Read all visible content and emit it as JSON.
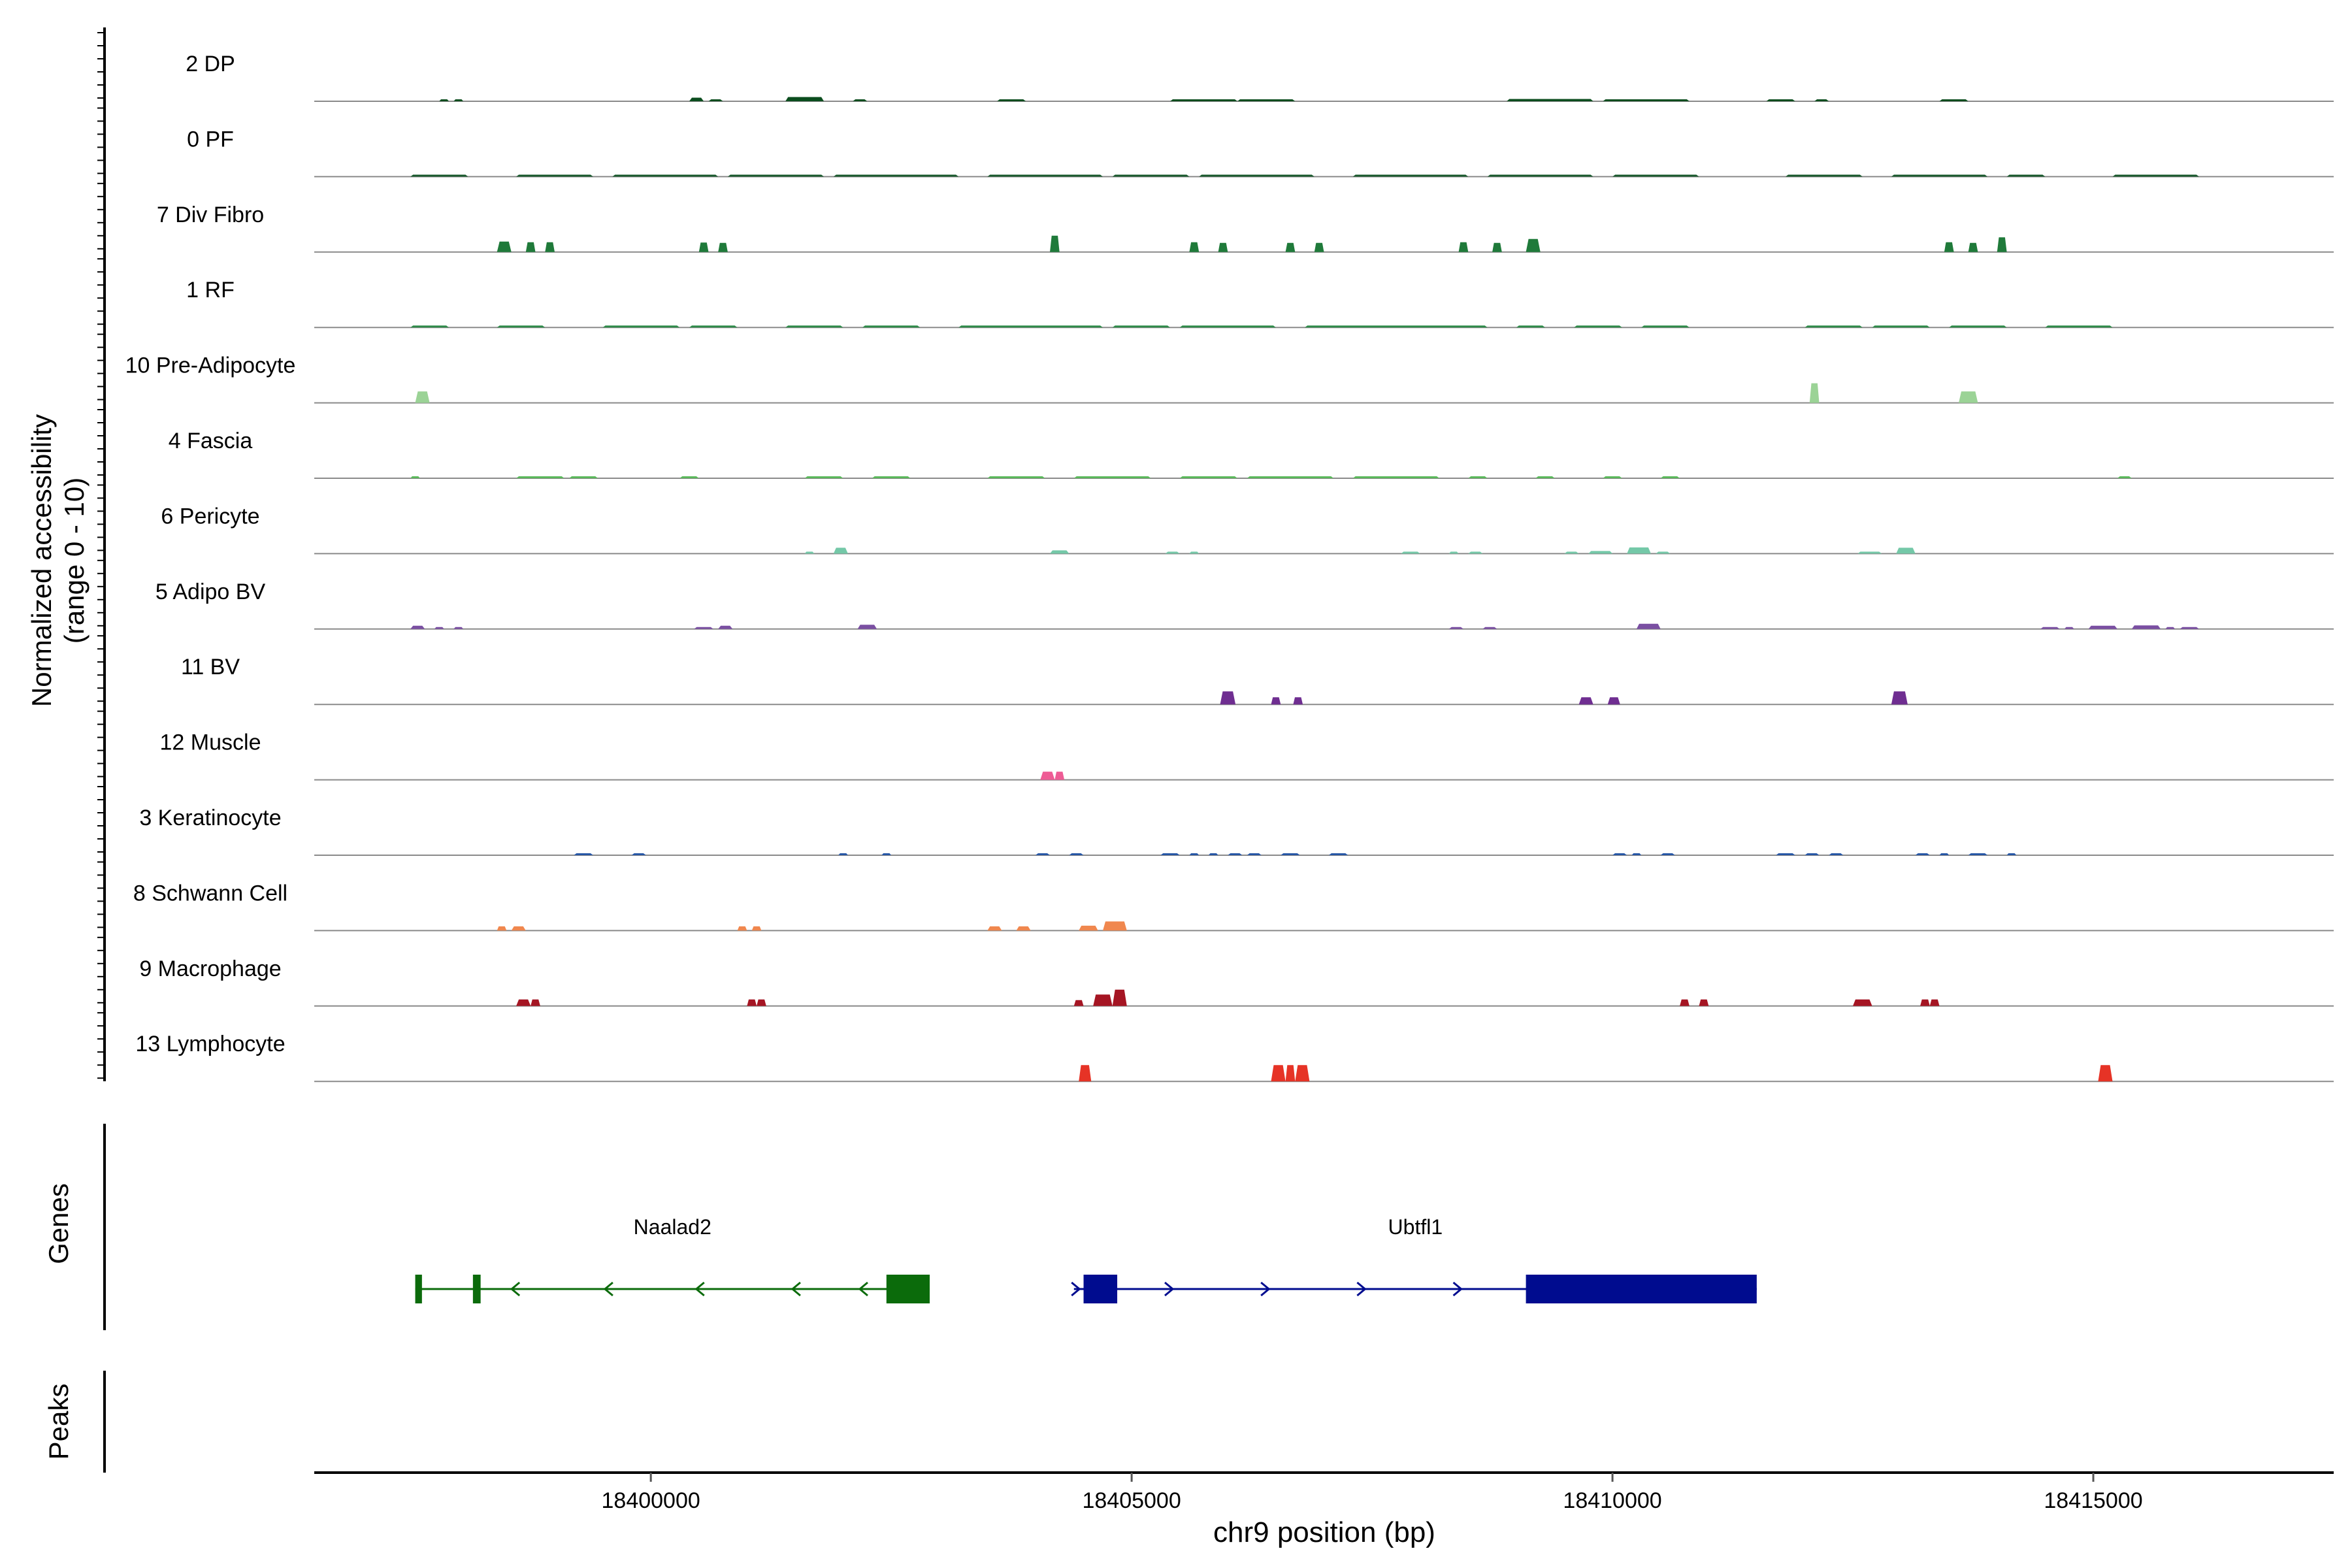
{
  "chart_data": {
    "type": "area",
    "xlabel": "chr9 position (bp)",
    "ylabel_line1": "Normalized accessibility",
    "ylabel_line2": "(range 0 - 10)",
    "genes_label": "Genes",
    "peaks_label": "Peaks",
    "xlim": [
      18396500,
      18417500
    ],
    "ylim": [
      0,
      10
    ],
    "x_ticks": [
      18400000,
      18405000,
      18410000,
      18415000
    ],
    "x_tick_labels": [
      "18400000",
      "18405000",
      "18410000",
      "18415000"
    ],
    "tracks": [
      {
        "name": "2 DP",
        "color": "#0b4d1e",
        "peaks": [
          [
            18397800,
            18397900,
            0.6
          ],
          [
            18397950,
            18398050,
            0.5
          ],
          [
            18400400,
            18400550,
            1.1
          ],
          [
            18400600,
            18400750,
            0.5
          ],
          [
            18401400,
            18401800,
            1.3
          ],
          [
            18402100,
            18402250,
            0.5
          ],
          [
            18403600,
            18403900,
            0.5
          ],
          [
            18405400,
            18406100,
            0.5
          ],
          [
            18406100,
            18406700,
            0.5
          ],
          [
            18408900,
            18409800,
            0.7
          ],
          [
            18409900,
            18410800,
            0.6
          ],
          [
            18411600,
            18411900,
            0.5
          ],
          [
            18412100,
            18412250,
            0.5
          ],
          [
            18413400,
            18413700,
            0.5
          ]
        ]
      },
      {
        "name": "0 PF",
        "color": "#16572a",
        "peaks": [
          [
            18397500,
            18398100,
            0.3
          ],
          [
            18398600,
            18399400,
            0.3
          ],
          [
            18399600,
            18400700,
            0.4
          ],
          [
            18400800,
            18401800,
            0.3
          ],
          [
            18401900,
            18403200,
            0.5
          ],
          [
            18403500,
            18404700,
            0.3
          ],
          [
            18404800,
            18405600,
            0.3
          ],
          [
            18405700,
            18406900,
            0.4
          ],
          [
            18407300,
            18408500,
            0.4
          ],
          [
            18408700,
            18409800,
            0.3
          ],
          [
            18410000,
            18410900,
            0.3
          ],
          [
            18411800,
            18412600,
            0.3
          ],
          [
            18412900,
            18413900,
            0.3
          ],
          [
            18414100,
            18414500,
            0.3
          ],
          [
            18415200,
            18416100,
            0.3
          ]
        ]
      },
      {
        "name": "7 Div Fibro",
        "color": "#1f7a3a",
        "peaks": [
          [
            18398400,
            18398550,
            3.2
          ],
          [
            18398700,
            18398800,
            3.0
          ],
          [
            18398900,
            18399000,
            3.0
          ],
          [
            18400500,
            18400600,
            2.9
          ],
          [
            18400700,
            18400800,
            2.8
          ],
          [
            18404150,
            18404250,
            5.0
          ],
          [
            18405600,
            18405700,
            3.0
          ],
          [
            18405900,
            18406000,
            2.8
          ],
          [
            18406600,
            18406700,
            2.8
          ],
          [
            18406900,
            18407000,
            2.8
          ],
          [
            18408400,
            18408500,
            3.0
          ],
          [
            18408750,
            18408850,
            2.8
          ],
          [
            18409100,
            18409250,
            4.0
          ],
          [
            18413450,
            18413550,
            3.0
          ],
          [
            18413700,
            18413800,
            2.8
          ],
          [
            18414000,
            18414100,
            4.5
          ]
        ]
      },
      {
        "name": "1 RF",
        "color": "#2d8a48",
        "peaks": [
          [
            18397500,
            18397900,
            0.3
          ],
          [
            18398400,
            18398900,
            0.3
          ],
          [
            18399500,
            18400300,
            0.3
          ],
          [
            18400400,
            18400900,
            0.4
          ],
          [
            18401400,
            18402000,
            0.3
          ],
          [
            18402200,
            18402800,
            0.3
          ],
          [
            18403200,
            18404700,
            0.4
          ],
          [
            18404800,
            18405400,
            0.3
          ],
          [
            18405500,
            18406500,
            0.3
          ],
          [
            18406800,
            18408700,
            0.3
          ],
          [
            18409000,
            18409300,
            0.5
          ],
          [
            18409600,
            18410100,
            0.3
          ],
          [
            18410300,
            18410800,
            0.4
          ],
          [
            18412000,
            18412600,
            0.3
          ],
          [
            18412700,
            18413300,
            0.3
          ],
          [
            18413500,
            18414100,
            0.5
          ],
          [
            18414500,
            18415200,
            0.3
          ]
        ]
      },
      {
        "name": "10 Pre-Adipocyte",
        "color": "#9bd396",
        "peaks": [
          [
            18397550,
            18397700,
            3.5
          ],
          [
            18412050,
            18412150,
            6.0
          ],
          [
            18413600,
            18413800,
            3.5
          ]
        ]
      },
      {
        "name": "4 Fascia",
        "color": "#5bb85b",
        "peaks": [
          [
            18397500,
            18397600,
            0.3
          ],
          [
            18398600,
            18399100,
            0.6
          ],
          [
            18399150,
            18399450,
            0.3
          ],
          [
            18400300,
            18400500,
            0.3
          ],
          [
            18401600,
            18402000,
            0.6
          ],
          [
            18402300,
            18402700,
            0.3
          ],
          [
            18403500,
            18404100,
            0.4
          ],
          [
            18404400,
            18405200,
            0.4
          ],
          [
            18405500,
            18406100,
            0.5
          ],
          [
            18406200,
            18407100,
            0.6
          ],
          [
            18407300,
            18408200,
            0.5
          ],
          [
            18408500,
            18408700,
            0.3
          ],
          [
            18409200,
            18409400,
            0.4
          ],
          [
            18409900,
            18410100,
            0.3
          ],
          [
            18410500,
            18410700,
            0.3
          ],
          [
            18415250,
            18415400,
            0.5
          ]
        ]
      },
      {
        "name": "6 Pericyte",
        "color": "#74c8a8",
        "peaks": [
          [
            18401600,
            18401700,
            0.6
          ],
          [
            18401900,
            18402050,
            1.8
          ],
          [
            18404150,
            18404350,
            1.0
          ],
          [
            18405350,
            18405500,
            0.6
          ],
          [
            18405600,
            18405700,
            0.6
          ],
          [
            18407800,
            18408000,
            0.6
          ],
          [
            18408300,
            18408400,
            0.6
          ],
          [
            18408500,
            18408650,
            0.6
          ],
          [
            18409500,
            18409650,
            0.6
          ],
          [
            18409750,
            18410000,
            0.8
          ],
          [
            18410150,
            18410400,
            1.9
          ],
          [
            18410450,
            18410600,
            0.6
          ],
          [
            18412550,
            18412800,
            0.6
          ],
          [
            18412950,
            18413150,
            1.8
          ]
        ]
      },
      {
        "name": "5 Adipo BV",
        "color": "#7a4fa2",
        "peaks": [
          [
            18397500,
            18397650,
            1.0
          ],
          [
            18397750,
            18397850,
            0.6
          ],
          [
            18397950,
            18398050,
            0.6
          ],
          [
            18400450,
            18400650,
            0.6
          ],
          [
            18400700,
            18400850,
            1.0
          ],
          [
            18402150,
            18402350,
            1.3
          ],
          [
            18408300,
            18408450,
            0.5
          ],
          [
            18408650,
            18408800,
            0.5
          ],
          [
            18410250,
            18410500,
            1.6
          ],
          [
            18414450,
            18414650,
            0.6
          ],
          [
            18414700,
            18414800,
            0.6
          ],
          [
            18414950,
            18415250,
            1.0
          ],
          [
            18415400,
            18415700,
            1.1
          ],
          [
            18415750,
            18415850,
            0.5
          ],
          [
            18415900,
            18416100,
            0.5
          ]
        ]
      },
      {
        "name": "11 BV",
        "color": "#6f2e91",
        "peaks": [
          [
            18405920,
            18406080,
            4.0
          ],
          [
            18406450,
            18406550,
            2.2
          ],
          [
            18406680,
            18406780,
            2.2
          ],
          [
            18409650,
            18409800,
            2.2
          ],
          [
            18409950,
            18410080,
            2.2
          ],
          [
            18412900,
            18413070,
            4.0
          ]
        ]
      },
      {
        "name": "12 Muscle",
        "color": "#ee5c95",
        "peaks": [
          [
            18404050,
            18404200,
            2.5
          ],
          [
            18404200,
            18404300,
            2.5
          ]
        ]
      },
      {
        "name": "3 Keratinocyte",
        "color": "#2757a6",
        "peaks": [
          [
            18399200,
            18399400,
            0.4
          ],
          [
            18399800,
            18399950,
            0.4
          ],
          [
            18401950,
            18402050,
            0.4
          ],
          [
            18402400,
            18402500,
            0.4
          ],
          [
            18404000,
            18404150,
            0.4
          ],
          [
            18404350,
            18404500,
            0.4
          ],
          [
            18405300,
            18405500,
            0.4
          ],
          [
            18405600,
            18405700,
            0.4
          ],
          [
            18405800,
            18405900,
            0.4
          ],
          [
            18406000,
            18406150,
            0.4
          ],
          [
            18406200,
            18406350,
            0.4
          ],
          [
            18406550,
            18406750,
            0.4
          ],
          [
            18407050,
            18407250,
            0.4
          ],
          [
            18410000,
            18410150,
            0.4
          ],
          [
            18410200,
            18410300,
            0.4
          ],
          [
            18410500,
            18410650,
            0.6
          ],
          [
            18411700,
            18411900,
            0.4
          ],
          [
            18412000,
            18412150,
            0.4
          ],
          [
            18412250,
            18412400,
            0.4
          ],
          [
            18413150,
            18413300,
            0.4
          ],
          [
            18413400,
            18413500,
            0.6
          ],
          [
            18413700,
            18413900,
            0.4
          ],
          [
            18414100,
            18414200,
            0.4
          ]
        ]
      },
      {
        "name": "8 Schwann Cell",
        "color": "#f0874e",
        "peaks": [
          [
            18398400,
            18398500,
            1.3
          ],
          [
            18398550,
            18398700,
            1.3
          ],
          [
            18400900,
            18401000,
            1.3
          ],
          [
            18401050,
            18401150,
            1.3
          ],
          [
            18403500,
            18403650,
            1.3
          ],
          [
            18403800,
            18403950,
            1.3
          ],
          [
            18404450,
            18404650,
            1.5
          ],
          [
            18404700,
            18404950,
            2.8
          ]
        ]
      },
      {
        "name": "9 Macrophage",
        "color": "#a51523",
        "peaks": [
          [
            18398600,
            18398750,
            2.0
          ],
          [
            18398750,
            18398850,
            2.0
          ],
          [
            18401000,
            18401100,
            2.0
          ],
          [
            18401100,
            18401200,
            2.0
          ],
          [
            18404400,
            18404500,
            1.8
          ],
          [
            18404600,
            18404800,
            3.5
          ],
          [
            18404800,
            18404950,
            5.0
          ],
          [
            18410700,
            18410800,
            2.0
          ],
          [
            18410900,
            18411000,
            2.0
          ],
          [
            18412500,
            18412700,
            2.0
          ],
          [
            18413200,
            18413300,
            2.0
          ],
          [
            18413300,
            18413400,
            2.0
          ]
        ]
      },
      {
        "name": "13 Lymphocyte",
        "color": "#e63326",
        "peaks": [
          [
            18404450,
            18404580,
            5.0
          ],
          [
            18406450,
            18406600,
            5.0
          ],
          [
            18406600,
            18406700,
            5.0
          ],
          [
            18406700,
            18406850,
            5.0
          ],
          [
            18415050,
            18415200,
            5.0
          ]
        ]
      }
    ],
    "genes": [
      {
        "name": "Naalad2",
        "color": "#0b6b0b",
        "strand": "-",
        "start": 18397550,
        "end": 18402900,
        "exons": [
          [
            18397550,
            18397620
          ],
          [
            18398150,
            18398230
          ],
          [
            18402450,
            18402900
          ]
        ],
        "arrows": [
          18398580,
          18399550,
          18400500,
          18401500,
          18402200
        ]
      },
      {
        "name": "Ubtfl1",
        "color": "#000c8f",
        "strand": "+",
        "start": 18404400,
        "end": 18411500,
        "exons": [
          [
            18404500,
            18404850
          ],
          [
            18409100,
            18411500
          ]
        ],
        "arrows": [
          18404430,
          18405400,
          18406400,
          18407400,
          18408400
        ]
      }
    ]
  }
}
